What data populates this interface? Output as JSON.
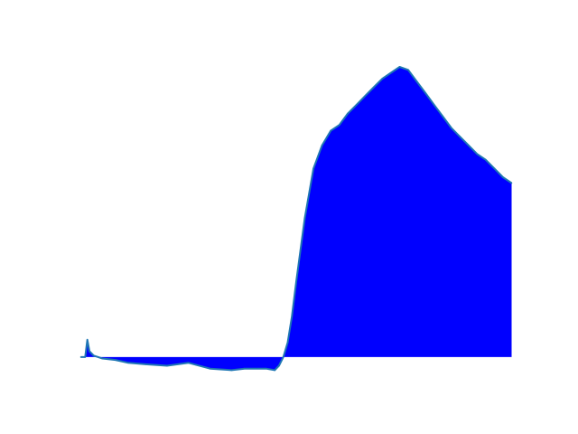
{
  "chart_data": {
    "type": "area",
    "title": "",
    "xlabel": "",
    "ylabel": "",
    "axes_visible": false,
    "grid": false,
    "legend": "none",
    "xlim": [
      -0.02,
      1.02
    ],
    "ylim": [
      -0.1,
      1.05
    ],
    "baseline": 0,
    "series": [
      {
        "fill_color": "#0000ff",
        "line_color": "#1f77b4",
        "x": [
          0.0,
          0.01,
          0.015,
          0.02,
          0.03,
          0.05,
          0.08,
          0.11,
          0.15,
          0.2,
          0.25,
          0.3,
          0.35,
          0.38,
          0.41,
          0.43,
          0.45,
          0.46,
          0.47,
          0.48,
          0.49,
          0.5,
          0.52,
          0.54,
          0.56,
          0.58,
          0.6,
          0.62,
          0.64,
          0.66,
          0.68,
          0.7,
          0.72,
          0.74,
          0.76,
          0.78,
          0.8,
          0.82,
          0.84,
          0.86,
          0.88,
          0.9,
          0.92,
          0.94,
          0.96,
          0.98,
          1.0
        ],
        "y": [
          0.0,
          0.0,
          0.06,
          0.02,
          0.005,
          -0.005,
          -0.01,
          -0.02,
          -0.025,
          -0.03,
          -0.02,
          -0.04,
          -0.045,
          -0.04,
          -0.04,
          -0.04,
          -0.045,
          -0.03,
          0.0,
          0.05,
          0.14,
          0.26,
          0.48,
          0.65,
          0.73,
          0.78,
          0.8,
          0.84,
          0.87,
          0.9,
          0.93,
          0.96,
          0.98,
          1.0,
          0.99,
          0.95,
          0.91,
          0.87,
          0.83,
          0.79,
          0.76,
          0.73,
          0.7,
          0.68,
          0.65,
          0.62,
          0.6
        ]
      }
    ]
  }
}
